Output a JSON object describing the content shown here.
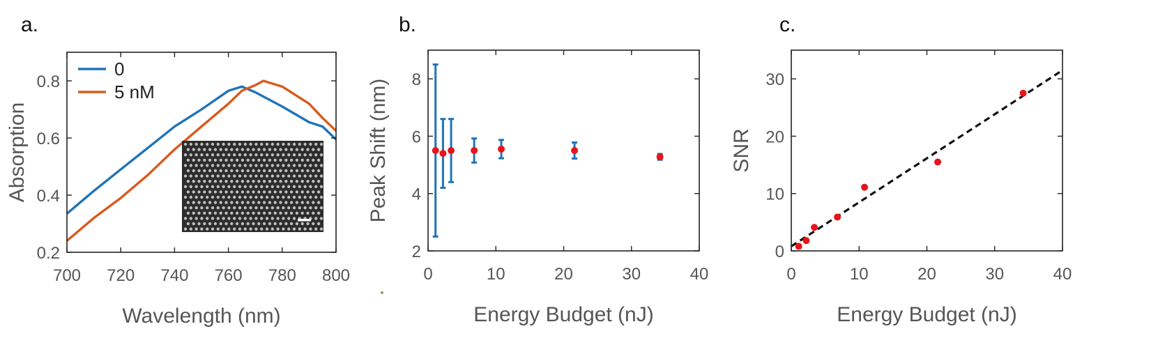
{
  "colors": {
    "series_0": "#1f74b8",
    "series_5nM": "#d85a1c",
    "marker": "#e8141b",
    "errorbar": "#1f74b8",
    "fit_line": "#111111",
    "axis": "#222222",
    "tick_text": "#555555"
  },
  "panels": {
    "a": {
      "label": "a."
    },
    "b": {
      "label": "b."
    },
    "c": {
      "label": "c."
    }
  },
  "inset": {
    "description_icon": "nanostructure-sem-image"
  },
  "chart_data": [
    {
      "type": "line",
      "xlabel": "Wavelength (nm)",
      "ylabel": "Absorption",
      "xlim": [
        700,
        800
      ],
      "ylim": [
        0.2,
        0.9
      ],
      "xticks": [
        700,
        720,
        740,
        760,
        780,
        800
      ],
      "yticks": [
        0.2,
        0.4,
        0.6,
        0.8
      ],
      "xtick_labels": [
        "700",
        "720",
        "740",
        "760",
        "780",
        "800"
      ],
      "ytick_labels": [
        "0.2",
        "0.4",
        "0.6",
        "0.8"
      ],
      "legend": "top-left",
      "grid": false,
      "series": [
        {
          "name": "0",
          "x": [
            700,
            710,
            720,
            730,
            740,
            750,
            760,
            765,
            770,
            780,
            790,
            795,
            800
          ],
          "y": [
            0.335,
            0.415,
            0.49,
            0.565,
            0.64,
            0.7,
            0.765,
            0.78,
            0.76,
            0.71,
            0.655,
            0.64,
            0.595
          ]
        },
        {
          "name": "5 nM",
          "x": [
            700,
            710,
            720,
            730,
            740,
            750,
            760,
            765,
            770,
            773,
            780,
            790,
            795,
            800
          ],
          "y": [
            0.24,
            0.32,
            0.39,
            0.47,
            0.56,
            0.64,
            0.72,
            0.765,
            0.785,
            0.8,
            0.78,
            0.72,
            0.67,
            0.625
          ]
        }
      ]
    },
    {
      "type": "scatter",
      "xlabel": "Energy Budget (nJ)",
      "ylabel": "Peak Shift (nm)",
      "xlim": [
        0,
        40
      ],
      "ylim": [
        2,
        9
      ],
      "xticks": [
        0,
        10,
        20,
        30,
        40
      ],
      "yticks": [
        2,
        4,
        6,
        8
      ],
      "xtick_labels": [
        "0",
        "10",
        "20",
        "30",
        "40"
      ],
      "ytick_labels": [
        "2",
        "4",
        "6",
        "8"
      ],
      "grid": false,
      "x": [
        1.1,
        2.2,
        3.4,
        6.8,
        10.8,
        21.6,
        34.2
      ],
      "y": [
        5.5,
        5.4,
        5.5,
        5.5,
        5.55,
        5.5,
        5.28
      ],
      "yerr": [
        3.0,
        1.2,
        1.1,
        0.42,
        0.32,
        0.28,
        0.1
      ]
    },
    {
      "type": "scatter",
      "xlabel": "Energy Budget (nJ)",
      "ylabel": "SNR",
      "xlim": [
        0,
        40
      ],
      "ylim": [
        0,
        35
      ],
      "xticks": [
        0,
        10,
        20,
        30,
        40
      ],
      "yticks": [
        0,
        10,
        20,
        30
      ],
      "xtick_labels": [
        "0",
        "10",
        "20",
        "30",
        "40"
      ],
      "ytick_labels": [
        "0",
        "10",
        "20",
        "30"
      ],
      "grid": false,
      "x": [
        1.1,
        2.2,
        3.4,
        6.8,
        10.8,
        21.6,
        34.2
      ],
      "y": [
        0.8,
        1.8,
        4.1,
        5.9,
        11.1,
        15.5,
        27.5
      ],
      "fit": {
        "x": [
          0,
          40
        ],
        "y": [
          0.8,
          31.5
        ]
      }
    }
  ]
}
